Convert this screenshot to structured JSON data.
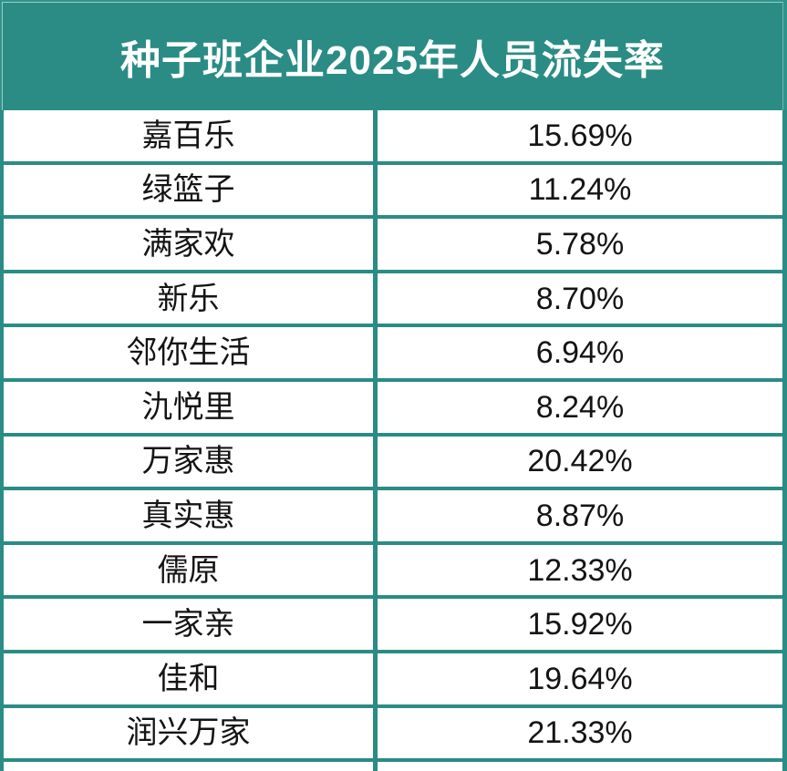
{
  "title": "种子班企业2025年人员流失率",
  "theme": {
    "teal_background": "#2f948c",
    "header_fill": "#2a8c85",
    "border_color": "#2a8c85",
    "cell_background": "#ffffff",
    "header_text_color": "#ffffff",
    "cell_text_color": "#141414"
  },
  "chart_data": {
    "type": "table",
    "title": "种子班企业2025年人员流失率",
    "rows": [
      {
        "name": "嘉百乐",
        "rate": "15.69%"
      },
      {
        "name": "绿篮子",
        "rate": "11.24%"
      },
      {
        "name": "满家欢",
        "rate": "5.78%"
      },
      {
        "name": "新乐",
        "rate": "8.70%"
      },
      {
        "name": "邻你生活",
        "rate": "6.94%"
      },
      {
        "name": "氿悦里",
        "rate": "8.24%"
      },
      {
        "name": "万家惠",
        "rate": "20.42%"
      },
      {
        "name": "真实惠",
        "rate": "8.87%"
      },
      {
        "name": "儒原",
        "rate": "12.33%"
      },
      {
        "name": "一家亲",
        "rate": "15.92%"
      },
      {
        "name": "佳和",
        "rate": "19.64%"
      },
      {
        "name": "润兴万家",
        "rate": "21.33%"
      }
    ],
    "layout": {
      "grid": "on",
      "columns": 2,
      "partial_row_visible_at_bottom": true
    }
  }
}
